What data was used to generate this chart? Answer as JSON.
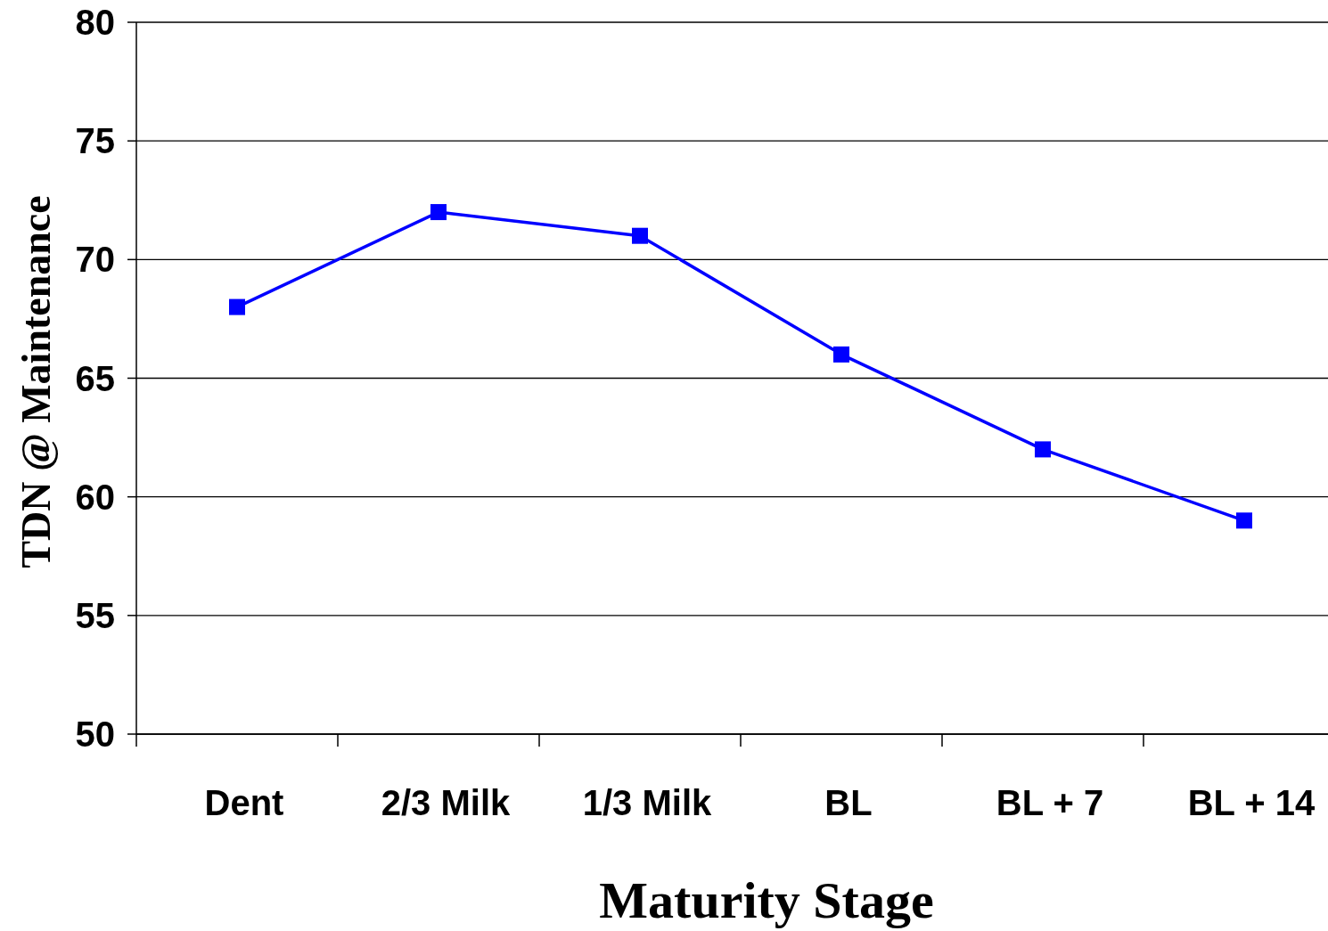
{
  "chart_data": {
    "type": "line",
    "xlabel": "Maturity Stage",
    "ylabel": "TDN @ Maintenance",
    "categories": [
      "Dent",
      "2/3 Milk",
      "1/3 Milk",
      "BL",
      "BL + 7",
      "BL + 14"
    ],
    "series": [
      {
        "color": "#0000ff",
        "values": [
          68,
          72,
          71,
          66,
          62,
          59
        ]
      }
    ],
    "ylim": [
      50,
      80
    ],
    "yticks": [
      50,
      55,
      60,
      65,
      70,
      75,
      80
    ],
    "grid": "y",
    "marker": "square",
    "line_style": "solid"
  }
}
